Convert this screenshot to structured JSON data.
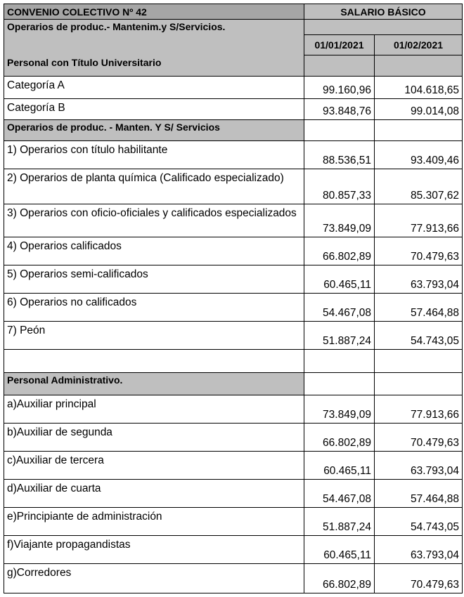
{
  "header": {
    "title": "CONVENIO COLECTIVO Nº 42",
    "salary_heading": "SALARIO BÁSICO",
    "group1": "Operarios de produc.- Mantenim.y S/Servicios.",
    "subgroup1": "Personal con Título Universitario",
    "dates": [
      "01/01/2021",
      "01/02/2021"
    ]
  },
  "rows": [
    {
      "type": "item",
      "label": "Categoría A",
      "v1": "99.160,96",
      "v2": "104.618,65"
    },
    {
      "type": "item",
      "label": "Categoría B",
      "v1": "93.848,76",
      "v2": "99.014,08"
    },
    {
      "type": "section",
      "label": "Operarios de produc. - Manten. Y S/ Servicios"
    },
    {
      "type": "item",
      "label": "1) Operarios con título habilitante",
      "v1": "88.536,51",
      "v2": "93.409,46"
    },
    {
      "type": "item",
      "label": "2) Operarios de planta química (Calificado especializado)",
      "v1": "80.857,33",
      "v2": "85.307,62"
    },
    {
      "type": "item",
      "label": "3) Operarios con oficio-oficiales y calificados especializados",
      "v1": "73.849,09",
      "v2": "77.913,66"
    },
    {
      "type": "item",
      "label": "4) Operarios calificados",
      "v1": "66.802,89",
      "v2": "70.479,63"
    },
    {
      "type": "item",
      "label": "5) Operarios semi-calificados",
      "v1": "60.465,11",
      "v2": "63.793,04"
    },
    {
      "type": "item",
      "label": "6) Operarios no calificados",
      "v1": "54.467,08",
      "v2": "57.464,88"
    },
    {
      "type": "item",
      "label": "7) Peón",
      "v1": "51.887,24",
      "v2": "54.743,05"
    },
    {
      "type": "blank"
    },
    {
      "type": "section",
      "label": "Personal Administrativo."
    },
    {
      "type": "item",
      "label": "a)Auxiliar principal",
      "v1": "73.849,09",
      "v2": "77.913,66"
    },
    {
      "type": "item",
      "label": "b)Auxiliar de segunda",
      "v1": "66.802,89",
      "v2": "70.479,63"
    },
    {
      "type": "item",
      "label": "c)Auxiliar de tercera",
      "v1": "60.465,11",
      "v2": "63.793,04"
    },
    {
      "type": "item",
      "label": "d)Auxiliar de cuarta",
      "v1": "54.467,08",
      "v2": "57.464,88"
    },
    {
      "type": "item",
      "label": "e)Principiante de administración",
      "v1": "51.887,24",
      "v2": "54.743,05"
    },
    {
      "type": "item",
      "label": "f)Viajante propagandistas",
      "v1": "60.465,11",
      "v2": "63.793,04"
    },
    {
      "type": "item",
      "label": "g)Corredores",
      "v1": "66.802,89",
      "v2": "70.479,63"
    }
  ]
}
